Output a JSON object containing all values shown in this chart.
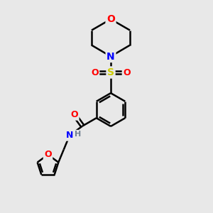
{
  "background_color": "#e8e8e8",
  "atom_colors": {
    "C": "#000000",
    "N": "#0000ff",
    "O": "#ff0000",
    "S": "#cccc00",
    "H": "#708090"
  },
  "bond_color": "#000000",
  "bond_width": 1.8,
  "figsize": [
    3.0,
    3.0
  ],
  "dpi": 100
}
